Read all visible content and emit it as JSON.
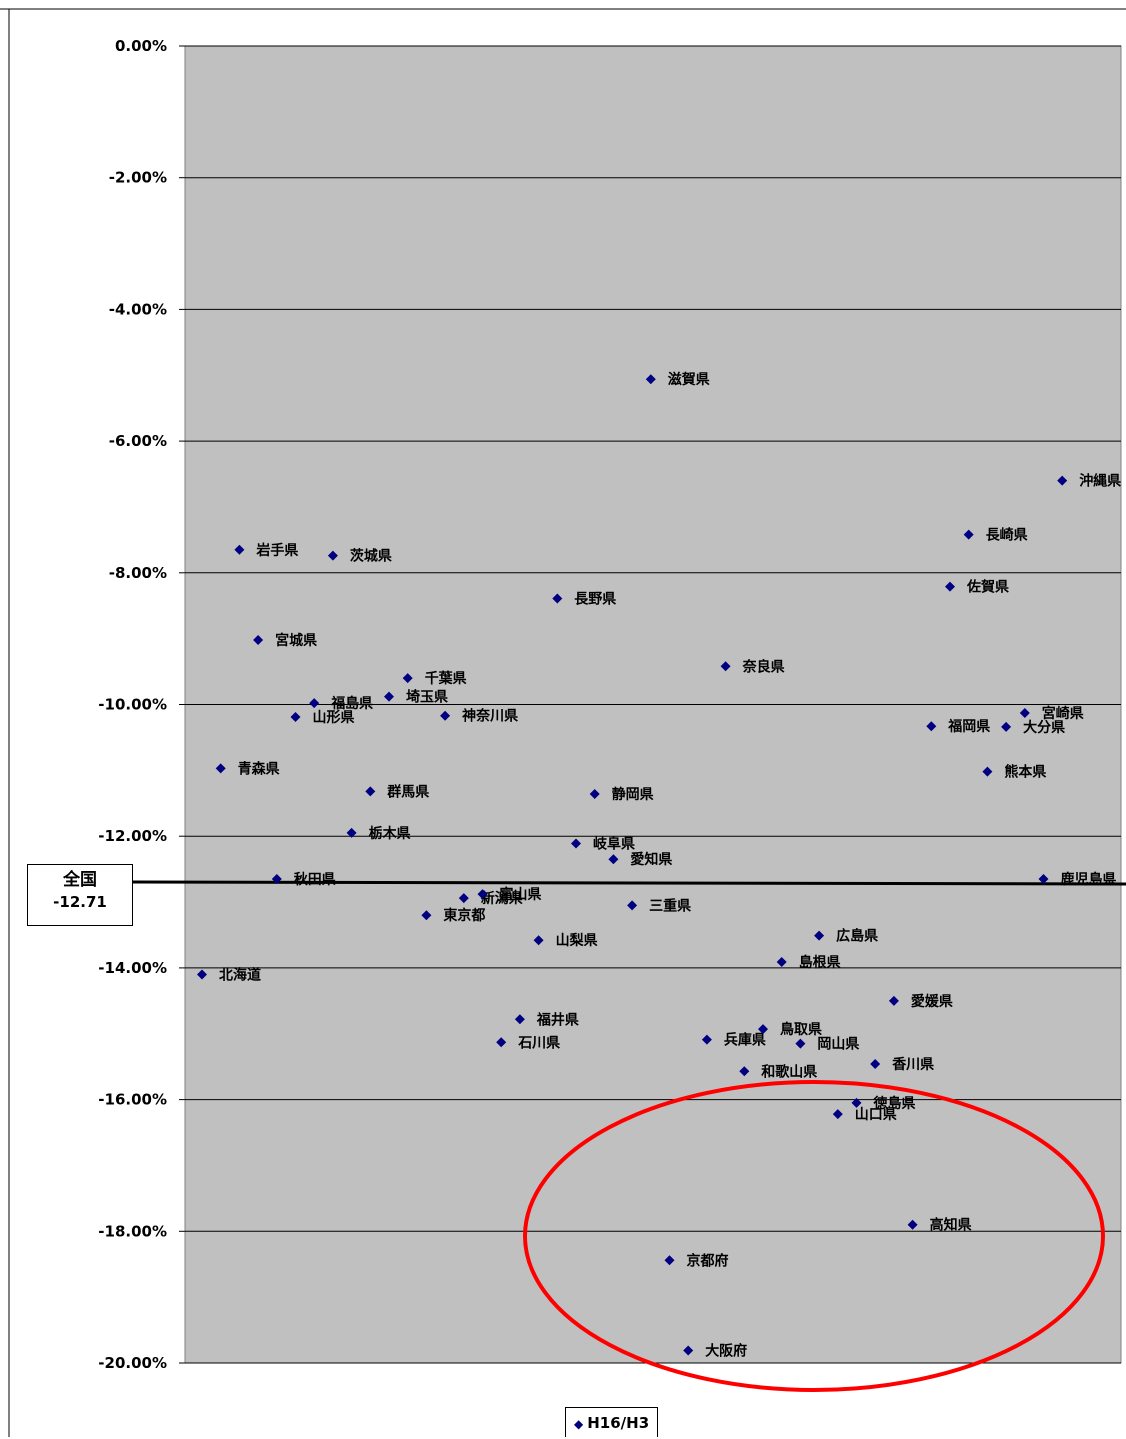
{
  "chart_data": {
    "type": "scatter",
    "title": "",
    "xlabel": "",
    "ylabel": "",
    "ylim": [
      -20.0,
      0.0
    ],
    "yticks": [
      "0.00%",
      "-2.00%",
      "-4.00%",
      "-6.00%",
      "-8.00%",
      "-10.00%",
      "-12.00%",
      "-14.00%",
      "-16.00%",
      "-18.00%",
      "-20.00%"
    ],
    "ytick_values": [
      0,
      -2,
      -4,
      -6,
      -8,
      -10,
      -12,
      -14,
      -16,
      -18,
      -20
    ],
    "grid": true,
    "legend": {
      "position": "bottom",
      "entries": [
        "H16/H3"
      ]
    },
    "marker_color": "#000080",
    "plot_background": "#c0c0c0",
    "reference_line": {
      "label": "全国",
      "value_label": "-12.71",
      "value": -12.71
    },
    "highlight_color": "#ff0000",
    "series": [
      {
        "name": "H16/H3",
        "points": [
          {
            "label": "北海道",
            "x": 1,
            "y": -14.1
          },
          {
            "label": "青森県",
            "x": 2,
            "y": -10.97
          },
          {
            "label": "岩手県",
            "x": 3,
            "y": -7.65
          },
          {
            "label": "宮城県",
            "x": 4,
            "y": -9.02
          },
          {
            "label": "秋田県",
            "x": 5,
            "y": -12.65
          },
          {
            "label": "山形県",
            "x": 6,
            "y": -10.19
          },
          {
            "label": "福島県",
            "x": 7,
            "y": -9.98
          },
          {
            "label": "茨城県",
            "x": 8,
            "y": -7.74
          },
          {
            "label": "栃木県",
            "x": 9,
            "y": -11.95
          },
          {
            "label": "群馬県",
            "x": 10,
            "y": -11.32
          },
          {
            "label": "埼玉県",
            "x": 11,
            "y": -9.88
          },
          {
            "label": "千葉県",
            "x": 12,
            "y": -9.6
          },
          {
            "label": "東京都",
            "x": 13,
            "y": -13.2
          },
          {
            "label": "神奈川県",
            "x": 14,
            "y": -10.17
          },
          {
            "label": "新潟県",
            "x": 15,
            "y": -12.94
          },
          {
            "label": "富山県",
            "x": 16,
            "y": -12.88
          },
          {
            "label": "石川県",
            "x": 17,
            "y": -15.13
          },
          {
            "label": "福井県",
            "x": 18,
            "y": -14.78
          },
          {
            "label": "山梨県",
            "x": 19,
            "y": -13.58
          },
          {
            "label": "長野県",
            "x": 20,
            "y": -8.39
          },
          {
            "label": "岐阜県",
            "x": 21,
            "y": -12.11
          },
          {
            "label": "静岡県",
            "x": 22,
            "y": -11.36
          },
          {
            "label": "愛知県",
            "x": 23,
            "y": -12.35
          },
          {
            "label": "三重県",
            "x": 24,
            "y": -13.05
          },
          {
            "label": "滋賀県",
            "x": 25,
            "y": -5.06
          },
          {
            "label": "京都府",
            "x": 26,
            "y": -18.44
          },
          {
            "label": "大阪府",
            "x": 27,
            "y": -19.81
          },
          {
            "label": "兵庫県",
            "x": 28,
            "y": -15.09
          },
          {
            "label": "奈良県",
            "x": 29,
            "y": -9.42
          },
          {
            "label": "和歌山県",
            "x": 30,
            "y": -15.57
          },
          {
            "label": "鳥取県",
            "x": 31,
            "y": -14.93
          },
          {
            "label": "島根県",
            "x": 32,
            "y": -13.91
          },
          {
            "label": "岡山県",
            "x": 33,
            "y": -15.15
          },
          {
            "label": "広島県",
            "x": 34,
            "y": -13.51
          },
          {
            "label": "山口県",
            "x": 35,
            "y": -16.22
          },
          {
            "label": "徳島県",
            "x": 36,
            "y": -16.05
          },
          {
            "label": "香川県",
            "x": 37,
            "y": -15.46
          },
          {
            "label": "愛媛県",
            "x": 38,
            "y": -14.5
          },
          {
            "label": "高知県",
            "x": 39,
            "y": -17.9
          },
          {
            "label": "福岡県",
            "x": 40,
            "y": -10.33
          },
          {
            "label": "佐賀県",
            "x": 41,
            "y": -8.21
          },
          {
            "label": "長崎県",
            "x": 42,
            "y": -7.42
          },
          {
            "label": "熊本県",
            "x": 43,
            "y": -11.02
          },
          {
            "label": "大分県",
            "x": 44,
            "y": -10.34
          },
          {
            "label": "宮崎県",
            "x": 45,
            "y": -10.13
          },
          {
            "label": "鹿児島県",
            "x": 46,
            "y": -12.65
          },
          {
            "label": "沖縄県",
            "x": 47,
            "y": -6.6
          }
        ]
      }
    ]
  }
}
